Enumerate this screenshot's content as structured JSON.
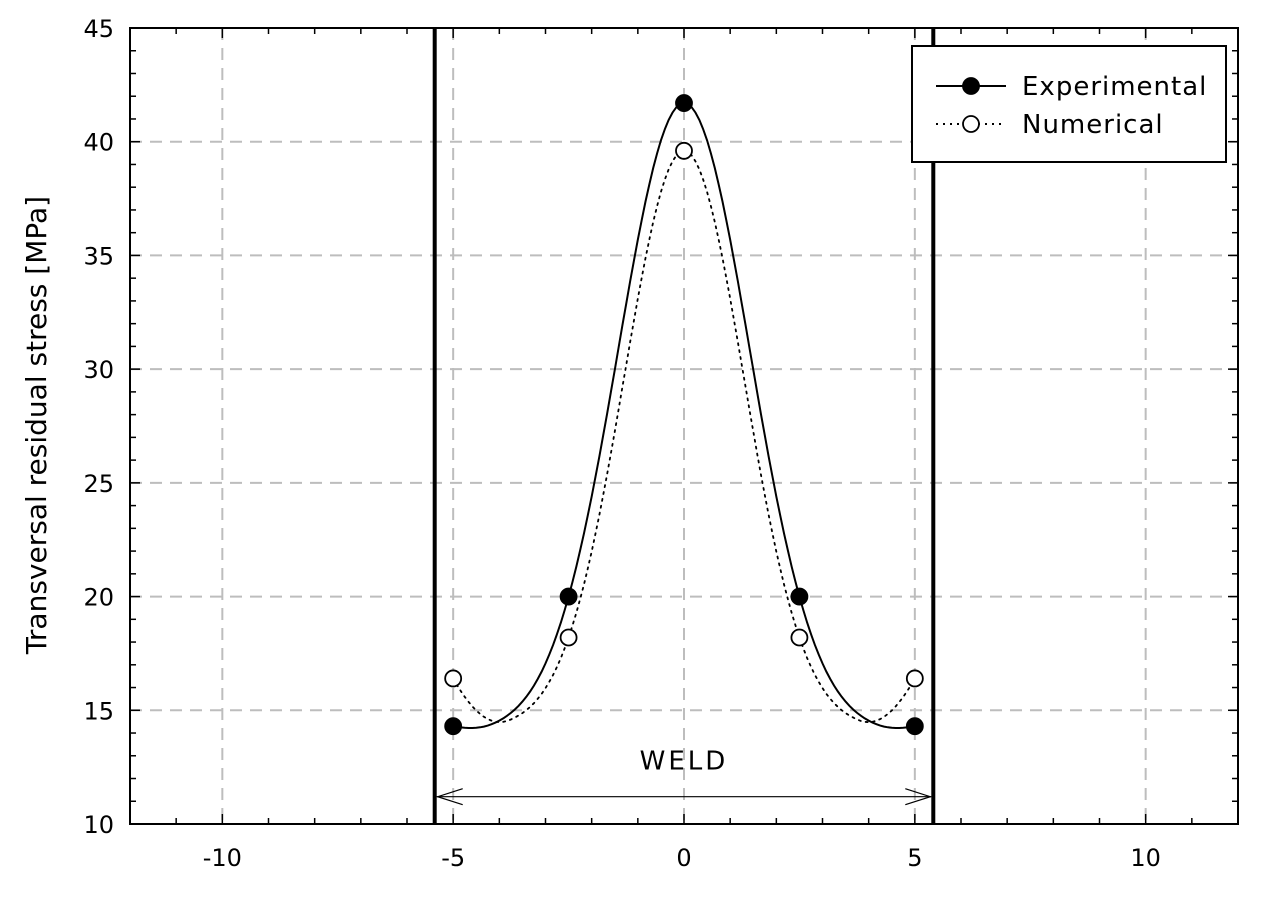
{
  "chart_data": {
    "type": "line",
    "xlabel": "",
    "ylabel": "Transversal residual stress [MPa]",
    "xlim": [
      -12,
      12
    ],
    "ylim": [
      10,
      45
    ],
    "x_ticks": [
      -10,
      -5,
      0,
      5,
      10
    ],
    "y_ticks": [
      10,
      15,
      20,
      25,
      30,
      35,
      40,
      45
    ],
    "grid": true,
    "legend_position": "top-right",
    "series": [
      {
        "name": "Experimental",
        "marker": "filled-circle",
        "line": "solid",
        "x": [
          -5,
          -2.5,
          0,
          2.5,
          5
        ],
        "y": [
          14.3,
          20.0,
          41.7,
          20.0,
          14.3
        ]
      },
      {
        "name": "Numerical",
        "marker": "open-circle",
        "line": "dotted",
        "x": [
          -5,
          -2.5,
          0,
          2.5,
          5
        ],
        "y": [
          16.4,
          18.2,
          39.6,
          18.2,
          16.4
        ]
      }
    ],
    "annotations": {
      "weld_label": "WELD",
      "weld_bounds": [
        -5.4,
        5.4
      ]
    }
  }
}
